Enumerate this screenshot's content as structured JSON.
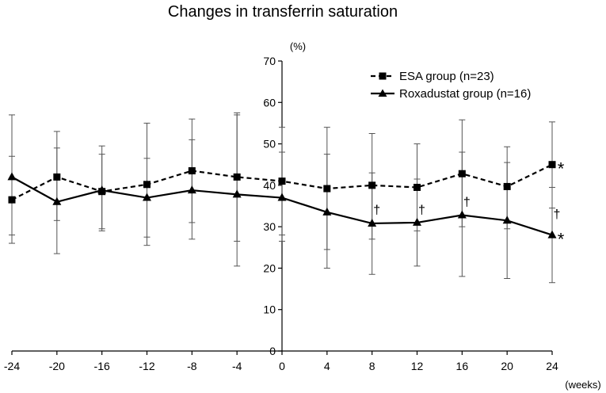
{
  "chart_data": {
    "type": "line",
    "title": "Changes in transferrin saturation",
    "ylabel": "(%)",
    "xlabel": "(weeks)",
    "ylim": [
      0,
      70
    ],
    "yticks": [
      0,
      10,
      20,
      30,
      40,
      50,
      60,
      70
    ],
    "xlim": [
      -24,
      24
    ],
    "x": [
      -24,
      -20,
      -16,
      -12,
      -8,
      -4,
      0,
      4,
      8,
      12,
      16,
      20,
      24
    ],
    "x_tick_labels": [
      "-24",
      "-20",
      "-16",
      "-12",
      "-8",
      "-4",
      "0",
      "4",
      "8",
      "12",
      "16",
      "20",
      "24"
    ],
    "series": [
      {
        "name": "ESA group (n=23)",
        "line_style": "dashed",
        "marker": "square",
        "values": [
          36.5,
          42,
          38.5,
          40.2,
          43.5,
          42,
          41,
          39.2,
          40,
          39.5,
          42.8,
          39.7,
          45
        ],
        "err_low": [
          26,
          23.5,
          29.5,
          25.5,
          31,
          26.5,
          28,
          24.5,
          27,
          29,
          30,
          29.5,
          34.5
        ],
        "err_high": [
          47,
          53,
          47.5,
          55,
          56,
          57.5,
          54,
          54,
          52.5,
          50,
          55.8,
          49.3,
          55.3
        ]
      },
      {
        "name": "Roxadustat group (n=16)",
        "line_style": "solid",
        "marker": "triangle",
        "values": [
          42,
          36,
          38.8,
          37,
          38.8,
          37.8,
          37,
          33.5,
          30.8,
          31,
          32.8,
          31.5,
          28
        ],
        "err_low": [
          28,
          31.5,
          29,
          27.5,
          27,
          20.5,
          26.5,
          20,
          18.5,
          20.5,
          18,
          17.5,
          16.5
        ],
        "err_high": [
          57,
          49,
          49.5,
          46.5,
          51,
          57,
          48,
          47.5,
          43,
          41.5,
          48,
          45.5,
          39.5
        ]
      }
    ],
    "annotations": [
      {
        "text": "†",
        "x": 8,
        "y": 34
      },
      {
        "text": "†",
        "x": 12,
        "y": 34
      },
      {
        "text": "†",
        "x": 16,
        "y": 36
      },
      {
        "text": "†",
        "x": 24,
        "y": 33
      },
      {
        "text": "*",
        "x": 24,
        "y": 45
      },
      {
        "text": "*",
        "x": 24,
        "y": 28
      }
    ]
  }
}
